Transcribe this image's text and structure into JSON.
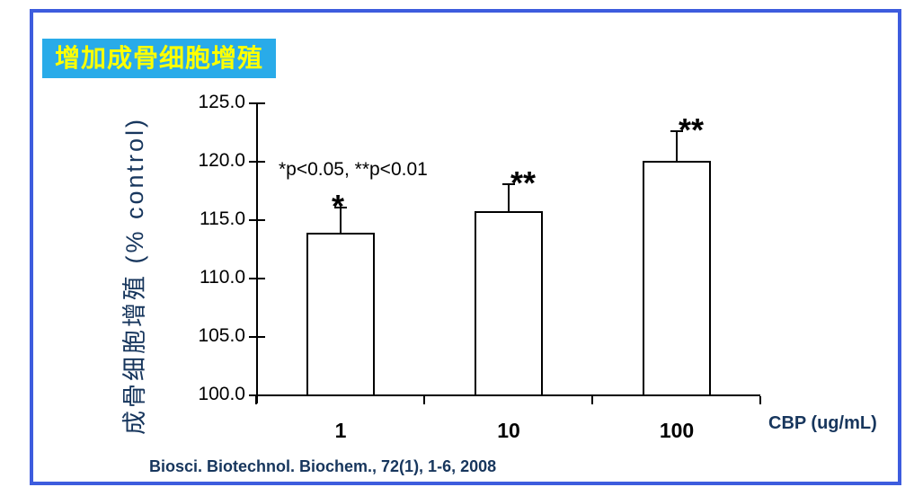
{
  "frame": {
    "border_color": "#3D5CDE",
    "background": "#FFFFFF"
  },
  "header": {
    "title": "增加成骨细胞增殖",
    "title_color": "#FFFF00",
    "title_bg": "#29ABE9"
  },
  "chart_data": {
    "type": "bar",
    "categories": [
      "1",
      "10",
      "100"
    ],
    "values": [
      113.9,
      115.8,
      120.1
    ],
    "errors_plus": [
      2.2,
      2.3,
      2.5
    ],
    "significance": [
      "*",
      "**",
      "**"
    ],
    "title": "增加成骨细胞增殖",
    "xlabel": "CBP (ug/mL)",
    "ylabel": "成骨细胞增殖 (% control)",
    "ylim": [
      100,
      125
    ],
    "yticks": [
      100,
      105,
      110,
      115,
      120,
      125
    ],
    "ytick_labels": [
      "100.0",
      "105.0",
      "110.0",
      "115.0",
      "120.0",
      "125.0"
    ],
    "annotation": "*p<0.05, **p<0.01",
    "grid": false,
    "legend_position": "none",
    "bar_fill": "#FFFFFF",
    "bar_border": "#000000",
    "axis_color": "#000000",
    "text_color": "#000000",
    "label_color": "#17365D"
  },
  "footer": {
    "citation": "Biosci. Biotechnol. Biochem., 72(1), 1-6, 2008"
  }
}
